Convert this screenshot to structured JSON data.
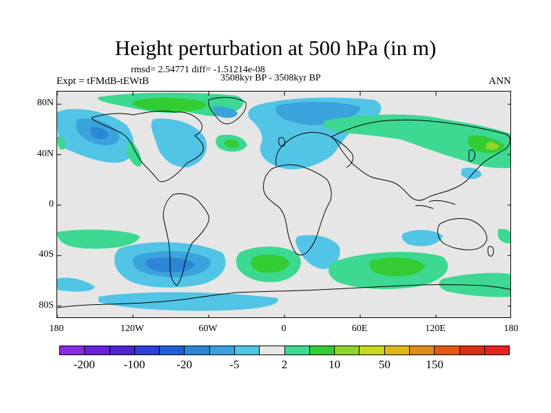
{
  "title": "Height perturbation at 500 hPa (in m)",
  "stats": "rmsd= 2.54771 diff= -1.51214e-08",
  "experiment": "Expt = tFMdB-tEWtB",
  "period": "3508kyr BP - 3508kyr BP",
  "season": "ANN",
  "x_axis": {
    "ticks": [
      "180",
      "120W",
      "60W",
      "0",
      "60E",
      "120E",
      "180"
    ],
    "lon": [
      -180,
      -120,
      -60,
      0,
      60,
      120,
      180
    ]
  },
  "y_axis": {
    "ticks": [
      "80N",
      "40N",
      "0",
      "40S",
      "80S"
    ],
    "lat": [
      80,
      40,
      0,
      -40,
      -80
    ]
  },
  "colorbar": {
    "colors": [
      "#8a2be2",
      "#6a1fd8",
      "#4b26d0",
      "#2d3fd8",
      "#1f5ed8",
      "#2c86d6",
      "#3aa3dc",
      "#52c4e6",
      "#e6e6e6",
      "#3dd891",
      "#33cc33",
      "#8fd52a",
      "#c8d81e",
      "#e0b81a",
      "#e08c18",
      "#e05a14",
      "#d83010",
      "#e82020"
    ],
    "labels": [
      "-200",
      "-100",
      "-20",
      "-5",
      "2",
      "10",
      "50",
      "150"
    ]
  },
  "map_colors": {
    "background": "#e6e6e6",
    "cyan": "#52c4e6",
    "blue": "#3aa3dc",
    "deepblue": "#2c86d6",
    "teal": "#3dd891",
    "green": "#33cc33",
    "yellowgreen": "#8fd52a"
  }
}
